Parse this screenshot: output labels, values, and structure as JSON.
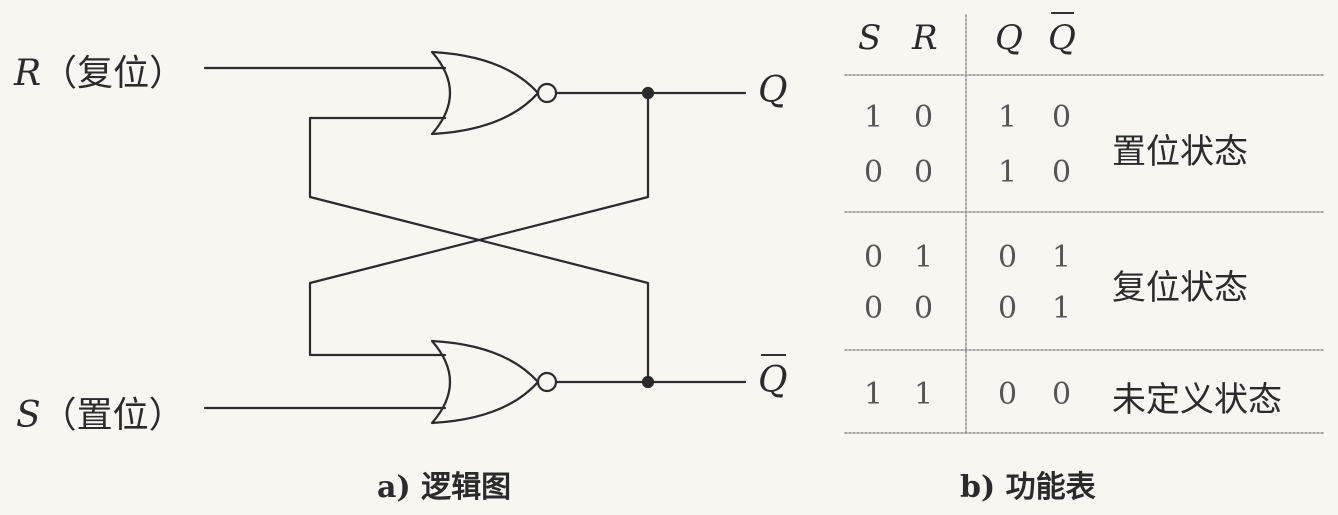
{
  "logic": {
    "r_letter": "R",
    "r_text": "（复位）",
    "s_letter": "S",
    "s_text": "（置位）",
    "q_out": "Q",
    "qbar_out": "Q",
    "caption": "a) 逻辑图"
  },
  "table": {
    "headers": [
      "S",
      "R",
      "Q",
      "Q"
    ],
    "rows": [
      [
        "1",
        "0",
        "1",
        "0"
      ],
      [
        "0",
        "0",
        "1",
        "0"
      ],
      [
        "0",
        "1",
        "0",
        "1"
      ],
      [
        "0",
        "0",
        "0",
        "1"
      ],
      [
        "1",
        "1",
        "0",
        "0"
      ]
    ],
    "states": [
      "置位状态",
      "复位状态",
      "未定义状态"
    ],
    "caption": "b) 功能表"
  },
  "colors": {
    "ink": "#2b2b2b",
    "rule": "#888888",
    "background": "#f7f6f1"
  }
}
